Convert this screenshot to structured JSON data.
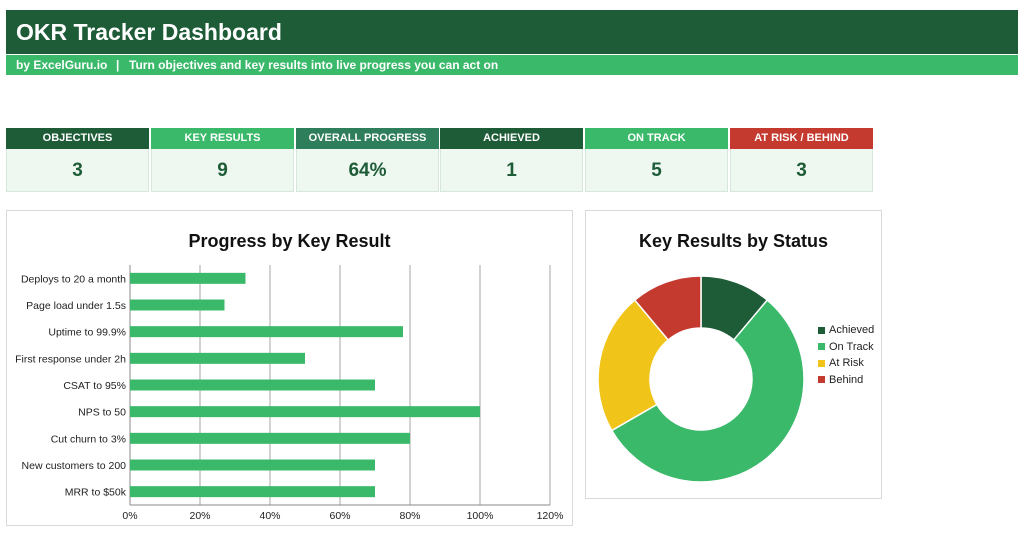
{
  "header": {
    "title": "OKR Tracker Dashboard",
    "byline": "by ExcelGuru.io",
    "separator": "|",
    "tagline": "Turn objectives and key results into live progress you can act on"
  },
  "kpis": [
    {
      "label": "OBJECTIVES",
      "value": "3",
      "color": "#1e5c38"
    },
    {
      "label": "KEY RESULTS",
      "value": "9",
      "color": "#3bb96a"
    },
    {
      "label": "OVERALL PROGRESS",
      "value": "64%",
      "color": "#2e7d5b"
    },
    {
      "label": "ACHIEVED",
      "value": "1",
      "color": "#1e5c38"
    },
    {
      "label": "ON TRACK",
      "value": "5",
      "color": "#3bb96a"
    },
    {
      "label": "AT RISK / BEHIND",
      "value": "3",
      "color": "#c43a2f"
    }
  ],
  "chart_data": [
    {
      "type": "bar",
      "orientation": "horizontal",
      "title": "Progress by Key Result",
      "categories": [
        "Deploys to 20 a month",
        "Page load under 1.5s",
        "Uptime to 99.9%",
        "First response under 2h",
        "CSAT to 95%",
        "NPS to 50",
        "Cut churn to 3%",
        "New customers to 200",
        "MRR to $50k"
      ],
      "values": [
        0.33,
        0.27,
        0.78,
        0.5,
        0.7,
        1.0,
        0.8,
        0.7,
        0.7
      ],
      "xlim": [
        0,
        1.2
      ],
      "xticks": [
        "0%",
        "20%",
        "40%",
        "60%",
        "80%",
        "100%",
        "120%"
      ],
      "grid": true,
      "color": "#3bb96a"
    },
    {
      "type": "pie",
      "donut": true,
      "title": "Key Results by Status",
      "labels": [
        "Achieved",
        "On Track",
        "At Risk",
        "Behind"
      ],
      "values": [
        1,
        5,
        2,
        1
      ],
      "colors": [
        "#1e5c38",
        "#3bb96a",
        "#f0c419",
        "#c43a2f"
      ],
      "legend": "right"
    }
  ]
}
